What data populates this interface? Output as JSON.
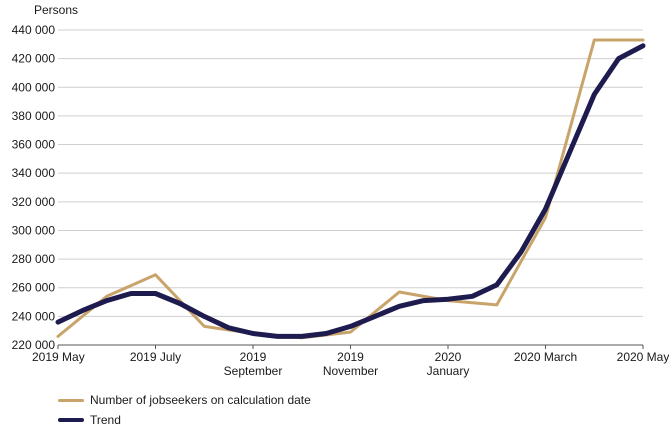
{
  "chart_data": {
    "type": "line",
    "ylabel": "Persons",
    "ylim": [
      220000,
      440000
    ],
    "yticks": [
      220000,
      240000,
      260000,
      280000,
      300000,
      320000,
      340000,
      360000,
      380000,
      400000,
      420000,
      440000
    ],
    "ytick_labels": [
      "220 000",
      "240 000",
      "260 000",
      "280 000",
      "300 000",
      "320 000",
      "340 000",
      "360 000",
      "380 000",
      "400 000",
      "420 000",
      "440 000"
    ],
    "xlim": [
      0,
      12
    ],
    "xticks": [
      {
        "x": 0,
        "lines": [
          "2019 May"
        ]
      },
      {
        "x": 2,
        "lines": [
          "2019 July"
        ]
      },
      {
        "x": 4,
        "lines": [
          "2019",
          "September"
        ]
      },
      {
        "x": 6,
        "lines": [
          "2019",
          "November"
        ]
      },
      {
        "x": 8,
        "lines": [
          "2020",
          "January"
        ]
      },
      {
        "x": 10,
        "lines": [
          "2020 March"
        ]
      },
      {
        "x": 12,
        "lines": [
          "2020 May"
        ]
      }
    ],
    "grid": true,
    "legend_position": "bottom-left",
    "series": [
      {
        "name": "Number of jobseekers on calculation date",
        "color": "#c9a46a",
        "x": [
          0,
          1,
          2,
          3,
          4,
          5,
          6,
          7,
          8,
          9,
          10,
          11,
          12
        ],
        "y": [
          226000,
          254000,
          269000,
          233000,
          228000,
          225000,
          229000,
          257000,
          251000,
          248000,
          309000,
          433000,
          433000
        ]
      },
      {
        "name": "Trend",
        "color": "#1e1b4f",
        "x": [
          0,
          0.5,
          1,
          1.5,
          2,
          2.5,
          3,
          3.5,
          4,
          4.5,
          5,
          5.5,
          6,
          6.5,
          7,
          7.5,
          8,
          8.5,
          9,
          9.5,
          10,
          10.5,
          11,
          11.5,
          12
        ],
        "y": [
          236000,
          244000,
          251000,
          256000,
          256000,
          249000,
          240000,
          232000,
          228000,
          226000,
          226000,
          228000,
          233000,
          240000,
          247000,
          251000,
          252000,
          254000,
          262000,
          285000,
          315000,
          355000,
          395000,
          420000,
          429000
        ]
      }
    ]
  }
}
